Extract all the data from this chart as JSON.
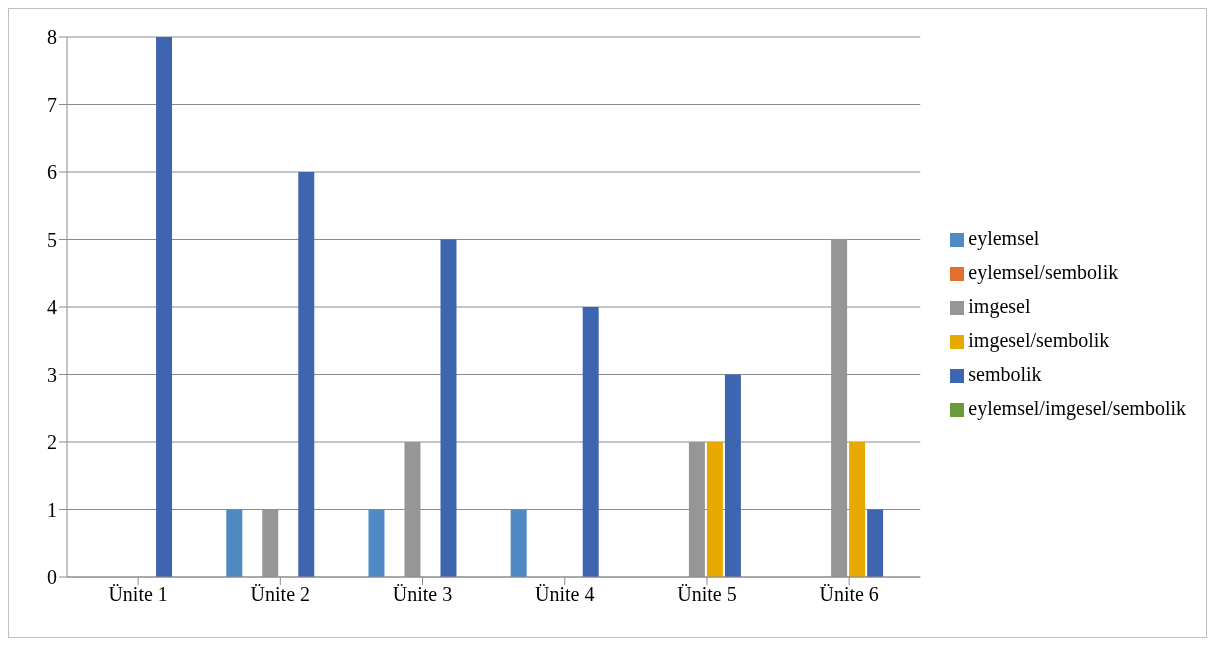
{
  "chart_data": {
    "type": "bar",
    "categories": [
      "Ünite 1",
      "Ünite 2",
      "Ünite 3",
      "Ünite 4",
      "Ünite 5",
      "Ünite 6"
    ],
    "series": [
      {
        "name": "eylemsel",
        "color": "#4f8ac4",
        "values": [
          0,
          1,
          1,
          1,
          0,
          0
        ]
      },
      {
        "name": "eylemsel/sembolik",
        "color": "#e0702c",
        "values": [
          0,
          0,
          0,
          0,
          0,
          0
        ]
      },
      {
        "name": "imgesel",
        "color": "#969696",
        "values": [
          0,
          1,
          2,
          0,
          2,
          5
        ]
      },
      {
        "name": "imgesel/sembolik",
        "color": "#e8aa00",
        "values": [
          0,
          0,
          0,
          0,
          2,
          2
        ]
      },
      {
        "name": "sembolik",
        "color": "#3e66b0",
        "values": [
          8,
          6,
          5,
          4,
          3,
          1
        ]
      },
      {
        "name": "eylemsel/imgesel/sembolik",
        "color": "#6a9a3c",
        "values": [
          0,
          0,
          0,
          0,
          0,
          0
        ]
      }
    ],
    "ylim": [
      0,
      8
    ],
    "yticks": [
      0,
      1,
      2,
      3,
      4,
      5,
      6,
      7,
      8
    ],
    "grid": "y",
    "legend": "right"
  }
}
